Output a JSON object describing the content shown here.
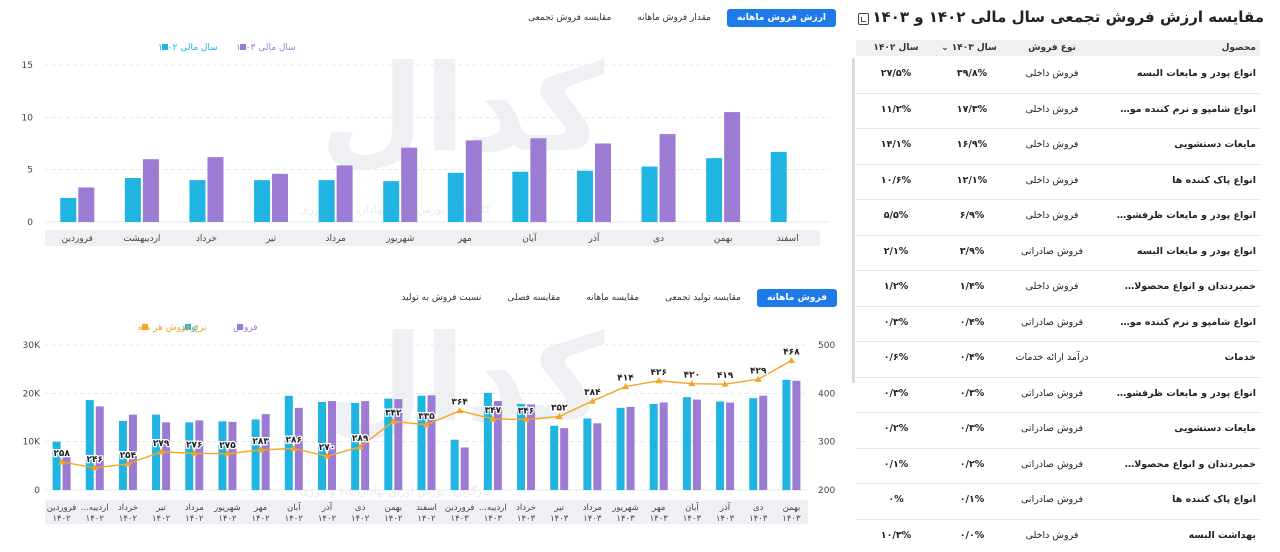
{
  "top_tabs": [
    "ارزش فروش ماهانه",
    "مقدار فروش ماهانه",
    "مقایسه فروش تجمعی"
  ],
  "bottom_tabs": [
    "فروش ماهانه",
    "مقایسه تولید تجمعی",
    "مقایسه ماهانه",
    "مقایسه فصلی",
    "نسبت فروش به تولید"
  ],
  "watermark": {
    "logo": "کدال",
    "line1": "کارگزاری بورس اوراق بهادار، کالا و انرژی"
  },
  "colors": {
    "cyan": "#1fb4e2",
    "purple": "#9b7bd4",
    "orange": "#f5a524",
    "active_tab": "#1e7ae8"
  },
  "chart_data": [
    {
      "type": "bar",
      "legend_position": "top-right",
      "grid": true,
      "ylim": [
        0,
        15
      ],
      "yticks": [
        "0",
        "5",
        "10",
        "15"
      ],
      "categories": [
        "اسفند",
        "بهمن",
        "دی",
        "آذر",
        "آبان",
        "مهر",
        "شهریور",
        "مرداد",
        "تیر",
        "خرداد",
        "اردیبهشت",
        "فروردین"
      ],
      "series": [
        {
          "name": "سال مالی ۱۴۰۲",
          "color": "#1fb4e2",
          "values": [
            6.7,
            6.1,
            5.3,
            4.9,
            4.8,
            4.7,
            3.9,
            4.0,
            4.0,
            4.0,
            4.2,
            2.3
          ]
        },
        {
          "name": "سال مالی ۱۴۰۳",
          "color": "#9b7bd4",
          "values": [
            null,
            10.5,
            8.4,
            7.5,
            8.0,
            7.8,
            7.1,
            5.4,
            4.6,
            6.2,
            6.0,
            3.3
          ]
        }
      ]
    },
    {
      "type": "bar",
      "legend_position": "top-right",
      "grid": true,
      "ylim": [
        0,
        30000
      ],
      "yticks": [
        "0",
        "10K",
        "20K",
        "30K"
      ],
      "y2lim": [
        200,
        500
      ],
      "y2ticks": [
        "200",
        "300",
        "400",
        "500"
      ],
      "categories": [
        {
          "m": "بهمن",
          "y": "۱۴۰۳"
        },
        {
          "m": "دی",
          "y": "۱۴۰۳"
        },
        {
          "m": "آذر",
          "y": "۱۴۰۳"
        },
        {
          "m": "آبان",
          "y": "۱۴۰۳"
        },
        {
          "m": "مهر",
          "y": "۱۴۰۳"
        },
        {
          "m": "شهریور",
          "y": "۱۴۰۳"
        },
        {
          "m": "مرداد",
          "y": "۱۴۰۳"
        },
        {
          "m": "تیر",
          "y": "۱۴۰۳"
        },
        {
          "m": "خرداد",
          "y": "۱۴۰۳"
        },
        {
          "m": "اردیبه...",
          "y": "۱۴۰۳"
        },
        {
          "m": "فروردین",
          "y": "۱۴۰۳"
        },
        {
          "m": "اسفند",
          "y": "۱۴۰۲"
        },
        {
          "m": "بهمن",
          "y": "۱۴۰۲"
        },
        {
          "m": "دی",
          "y": "۱۴۰۲"
        },
        {
          "m": "آذر",
          "y": "۱۴۰۲"
        },
        {
          "m": "آبان",
          "y": "۱۴۰۲"
        },
        {
          "m": "مهر",
          "y": "۱۴۰۲"
        },
        {
          "m": "شهریور",
          "y": "۱۴۰۲"
        },
        {
          "m": "مرداد",
          "y": "۱۴۰۲"
        },
        {
          "m": "تیر",
          "y": "۱۴۰۲"
        },
        {
          "m": "خرداد",
          "y": "۱۴۰۲"
        },
        {
          "m": "اردیبه...",
          "y": "۱۴۰۲"
        },
        {
          "m": "فروردین",
          "y": "۱۴۰۲"
        }
      ],
      "series": [
        {
          "name": "فروش",
          "color": "#9b7bd4",
          "values": [
            22600,
            19500,
            18100,
            18700,
            18100,
            17200,
            13800,
            12800,
            17700,
            18400,
            8800,
            19600,
            18800,
            18400,
            18400,
            17000,
            15700,
            14100,
            14400,
            14000,
            15600,
            17300,
            7400
          ]
        },
        {
          "name": "تولید",
          "color": "#1fb4e2",
          "values": [
            22800,
            19000,
            18300,
            19200,
            17800,
            17000,
            14800,
            13300,
            17800,
            20100,
            10400,
            19500,
            18900,
            18000,
            18200,
            19500,
            14600,
            14200,
            14000,
            15600,
            14300,
            18600,
            10000
          ]
        },
        {
          "name": "نرخ فروش هر ماه",
          "color": "#f5a524",
          "axis": "right",
          "values": [
            468,
            429,
            419,
            420,
            426,
            414,
            384,
            352,
            346,
            347,
            364,
            335,
            342,
            289,
            270,
            286,
            283,
            275,
            276,
            279,
            254,
            246,
            258
          ],
          "labels": [
            "۴۶۸",
            "۴۲۹",
            "۴۱۹",
            "۴۲۰",
            "۴۲۶",
            "۴۱۴",
            "۳۸۴",
            "۳۵۲",
            "۳۴۶",
            "۳۴۷",
            "۳۶۴",
            "۳۳۵",
            "۳۴۲",
            "۲۸۹",
            "۲۷۰",
            "۲۸۶",
            "۲۸۳",
            "۲۷۵",
            "۲۷۶",
            "۲۷۹",
            "۲۵۴",
            "۲۴۶",
            "۲۵۸"
          ]
        }
      ]
    }
  ],
  "table": {
    "title": "مقایسه ارزش فروش تجمعی سال مالی ۱۴۰۲ و ۱۴۰۳",
    "headers": {
      "product": "محصول",
      "type": "نوع فروش",
      "y1403": "سال ۱۴۰۳",
      "y1402": "سال ۱۴۰۲"
    },
    "rows": [
      {
        "product": "انواع پودر و مایعات البسه",
        "type": "فروش داخلی",
        "y1403": "۳۹/۸%",
        "y1402": "۲۷/۵%"
      },
      {
        "product": "انواع شامپو و نرم کننده موی سر",
        "type": "فروش داخلی",
        "y1403": "۱۷/۳%",
        "y1402": "۱۱/۲%"
      },
      {
        "product": "مایعات دستشویی",
        "type": "فروش داخلی",
        "y1403": "۱۶/۹%",
        "y1402": "۱۴/۱%"
      },
      {
        "product": "انواع پاک کننده ها",
        "type": "فروش داخلی",
        "y1403": "۱۲/۱%",
        "y1402": "۱۰/۶%"
      },
      {
        "product": "انواع پودر و مایعات ظرفشویی",
        "type": "فروش داخلی",
        "y1403": "۶/۹%",
        "y1402": "۵/۵%"
      },
      {
        "product": "انواع پودر و مایعات البسه",
        "type": "فروش صادراتی",
        "y1403": "۳/۹%",
        "y1402": "۲/۱%"
      },
      {
        "product": "خمیردندان و انواع محصولات بهدا...",
        "type": "فروش داخلی",
        "y1403": "۱/۴%",
        "y1402": "۱/۲%"
      },
      {
        "product": "انواع شامپو و نرم کننده موی سر",
        "type": "فروش صادراتی",
        "y1403": "۰/۴%",
        "y1402": "۰/۳%"
      },
      {
        "product": "خدمات",
        "type": "درآمد ارائه خدمات",
        "y1403": "۰/۴%",
        "y1402": "۰/۶%"
      },
      {
        "product": "انواع پودر و مایعات ظرفشویی",
        "type": "فروش صادراتی",
        "y1403": "۰/۳%",
        "y1402": "۰/۳%"
      },
      {
        "product": "مایعات دستشویی",
        "type": "فروش صادراتی",
        "y1403": "۰/۳%",
        "y1402": "۰/۲%"
      },
      {
        "product": "خمیردندان و انواع محصولات بهدا...",
        "type": "فروش صادراتی",
        "y1403": "۰/۲%",
        "y1402": "۰/۱%"
      },
      {
        "product": "انواع پاک کننده ها",
        "type": "فروش صادراتی",
        "y1403": "۰/۱%",
        "y1402": "۰%"
      },
      {
        "product": "بهداشت البسه",
        "type": "فروش داخلی",
        "y1403": "۰/۰%",
        "y1402": "۱۰/۳%"
      }
    ]
  }
}
